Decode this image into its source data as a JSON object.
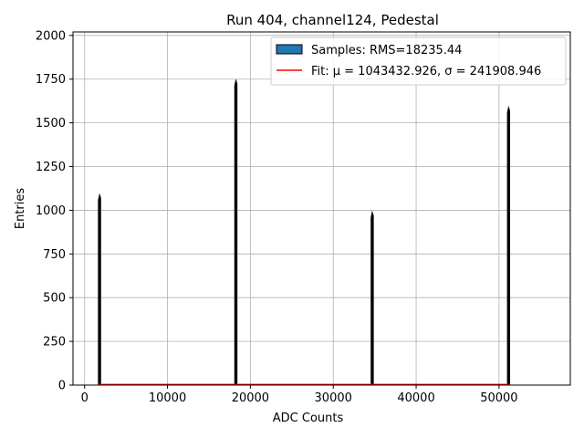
{
  "chart_data": {
    "type": "bar",
    "title": "Run 404, channel124, Pedestal",
    "xlabel": "ADC Counts",
    "ylabel": "Entries",
    "xlim": [
      -1400,
      58600
    ],
    "ylim": [
      0,
      2020
    ],
    "xticks": [
      0,
      10000,
      20000,
      30000,
      40000,
      50000
    ],
    "yticks": [
      0,
      250,
      500,
      750,
      1000,
      1250,
      1500,
      1750,
      2000
    ],
    "grid": true,
    "legend_position": "top-right",
    "series": [
      {
        "name": "Samples: RMS=18235.44",
        "kind": "histogram",
        "color": "#1f77b4",
        "edge_color": "#000000",
        "peaks": [
          {
            "x": 1800,
            "y": 1090
          },
          {
            "x": 18250,
            "y": 1745
          },
          {
            "x": 34700,
            "y": 990
          },
          {
            "x": 51150,
            "y": 1590
          }
        ]
      },
      {
        "name": "Fit: μ = 1043432.926, σ = 241908.946",
        "kind": "line",
        "color": "#ff0000",
        "x": [
          1700,
          51300
        ],
        "y": [
          3,
          3
        ]
      }
    ]
  }
}
